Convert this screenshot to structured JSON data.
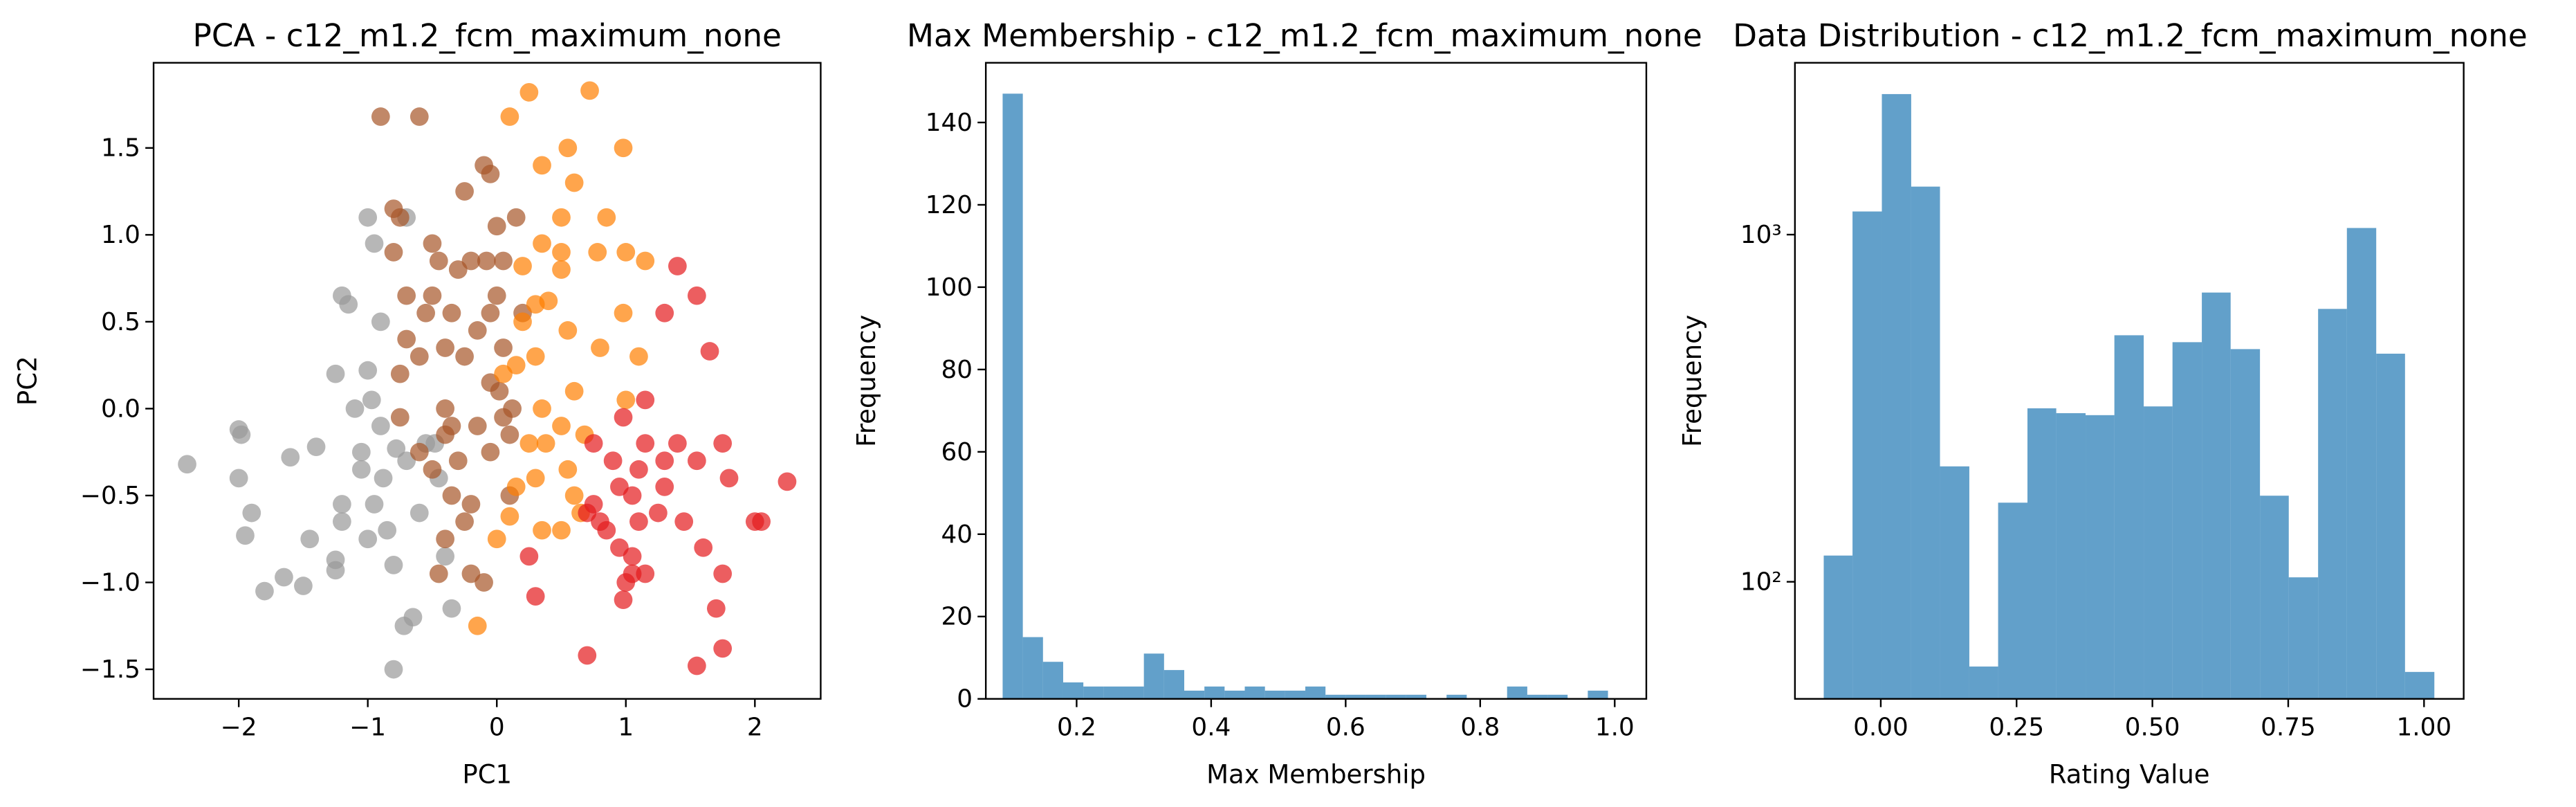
{
  "chart_data": [
    {
      "type": "scatter",
      "title": "PCA - c12_m1.2_fcm_maximum_none",
      "x_label": "PC1",
      "y_label": "PC2",
      "xlim": [
        -2.66,
        2.51
      ],
      "ylim": [
        -1.67,
        1.99
      ],
      "xticks": [
        {
          "value": -2,
          "label": "−2"
        },
        {
          "value": -1,
          "label": "−1"
        },
        0,
        1,
        2
      ],
      "yticks": [
        {
          "value": -1.5,
          "label": "−1.5"
        },
        {
          "value": -1,
          "label": "−1.0"
        },
        {
          "value": -0.5,
          "label": "−0.5"
        },
        {
          "value": 0,
          "label": "0.0"
        },
        0.5,
        {
          "value": 1,
          "label": "1.0"
        },
        1.5
      ],
      "alpha": 0.7,
      "series": [
        {
          "color": "#999999",
          "x": [
            -2.4,
            -2.0,
            -1.98,
            -2.0,
            -1.9,
            -1.95,
            -1.8,
            -1.65,
            -1.6,
            -1.5,
            -1.45,
            -1.4,
            -1.25,
            -1.2,
            -1.25,
            -1.2,
            -1.25,
            -1.2,
            -1.15,
            -1.1,
            -1.05,
            -1.05,
            -1.0,
            -0.97,
            -1.0,
            -0.95,
            -0.95,
            -0.9,
            -0.88,
            -0.85,
            -0.8,
            -0.78,
            -0.72,
            -0.8,
            -0.65,
            -0.7,
            -0.7,
            -0.6,
            -0.55,
            -0.48,
            -0.45,
            -0.35,
            -0.4,
            -1.0,
            -0.9
          ],
          "values": [
            -0.32,
            -0.12,
            -0.15,
            -0.4,
            -0.6,
            -0.73,
            -1.05,
            -0.97,
            -0.28,
            -1.02,
            -0.75,
            -0.22,
            -0.93,
            -0.65,
            -0.87,
            -0.55,
            0.2,
            0.65,
            0.6,
            0.0,
            -0.35,
            -0.25,
            -0.75,
            0.05,
            1.1,
            0.95,
            -0.55,
            -0.1,
            -0.4,
            -0.7,
            -0.9,
            -0.23,
            -1.25,
            -1.5,
            -1.2,
            -0.3,
            1.1,
            -0.6,
            -0.2,
            -0.2,
            -0.4,
            -1.15,
            -0.85,
            0.22,
            0.5
          ]
        },
        {
          "color": "#a65628",
          "x": [
            -0.9,
            -0.6,
            -0.8,
            -0.75,
            -0.8,
            -0.7,
            -0.75,
            -0.75,
            -0.7,
            -0.6,
            -0.55,
            -0.5,
            -0.5,
            -0.45,
            -0.4,
            -0.4,
            -0.35,
            -0.3,
            -0.35,
            -0.3,
            -0.4,
            -0.45,
            -0.4,
            -0.25,
            -0.25,
            -0.2,
            -0.2,
            -0.15,
            -0.15,
            -0.1,
            -0.05,
            -0.08,
            -0.05,
            0.0,
            0.0,
            0.02,
            0.05,
            0.05,
            0.1,
            0.12,
            -0.1,
            -0.2,
            -0.25,
            -0.35,
            0.1,
            -0.05,
            0.15,
            0.2,
            0.05,
            -0.05,
            -0.5,
            -0.6
          ],
          "values": [
            1.68,
            1.68,
            1.15,
            1.1,
            0.9,
            0.65,
            0.2,
            -0.05,
            0.4,
            0.3,
            0.55,
            0.95,
            0.65,
            0.85,
            0.35,
            0.0,
            0.55,
            0.8,
            -0.5,
            -0.3,
            -0.15,
            -0.95,
            -0.75,
            1.25,
            0.3,
            0.85,
            -0.55,
            -0.1,
            0.45,
            1.4,
            1.35,
            0.85,
            0.55,
            0.65,
            1.05,
            0.1,
            0.35,
            0.85,
            -0.15,
            0.0,
            -1.0,
            -0.95,
            -0.65,
            -0.1,
            -0.5,
            -0.25,
            1.1,
            0.55,
            -0.05,
            0.15,
            -0.35,
            -0.25
          ]
        },
        {
          "color": "#ff7f00",
          "x": [
            0.25,
            0.72,
            0.1,
            0.35,
            0.55,
            0.98,
            0.6,
            0.85,
            0.5,
            0.2,
            0.35,
            0.5,
            0.5,
            0.78,
            1.0,
            1.15,
            0.3,
            0.4,
            0.55,
            0.2,
            0.3,
            0.15,
            0.05,
            0.98,
            0.6,
            0.8,
            1.0,
            1.1,
            0.35,
            0.5,
            0.25,
            0.3,
            0.15,
            0.35,
            0.5,
            0.65,
            0.55,
            0.6,
            0.0,
            -0.15,
            0.1,
            0.38,
            0.68
          ],
          "values": [
            1.82,
            1.83,
            1.68,
            1.4,
            1.5,
            1.5,
            1.3,
            1.1,
            1.1,
            0.82,
            0.95,
            0.9,
            0.8,
            0.9,
            0.9,
            0.85,
            0.6,
            0.62,
            0.45,
            0.5,
            0.3,
            0.25,
            0.2,
            0.55,
            0.1,
            0.35,
            0.05,
            0.3,
            0.0,
            -0.1,
            -0.2,
            -0.4,
            -0.45,
            -0.7,
            -0.7,
            -0.6,
            -0.35,
            -0.5,
            -0.75,
            -1.25,
            -0.62,
            -0.2,
            -0.15
          ]
        },
        {
          "color": "#e41a1c",
          "x": [
            1.4,
            1.55,
            1.65,
            1.3,
            0.98,
            1.15,
            1.4,
            1.55,
            1.75,
            1.8,
            0.75,
            0.9,
            0.95,
            1.05,
            1.1,
            1.25,
            1.45,
            1.6,
            0.75,
            0.85,
            0.95,
            1.05,
            0.7,
            0.8,
            1.0,
            1.05,
            0.98,
            1.15,
            0.3,
            0.7,
            1.3,
            1.55,
            1.75,
            1.7,
            1.75,
            2.0,
            2.05,
            2.25,
            0.25,
            1.15,
            1.3,
            1.1
          ],
          "values": [
            0.82,
            0.65,
            0.33,
            0.55,
            -0.05,
            0.05,
            -0.2,
            -0.3,
            -0.2,
            -0.4,
            -0.2,
            -0.3,
            -0.45,
            -0.5,
            -0.65,
            -0.6,
            -0.65,
            -0.8,
            -0.55,
            -0.7,
            -0.8,
            -0.85,
            -0.6,
            -0.65,
            -1.0,
            -0.95,
            -1.1,
            -0.95,
            -1.08,
            -1.42,
            -0.45,
            -1.48,
            -0.95,
            -1.15,
            -1.38,
            -0.65,
            -0.65,
            -0.42,
            -0.85,
            -0.2,
            -0.3,
            -0.35
          ]
        }
      ]
    },
    {
      "type": "histogram",
      "title": "Max Membership - c12_m1.2_fcm_maximum_none",
      "x_label": "Max Membership",
      "y_label": "Frequency",
      "color": "#1f77b4",
      "alpha": 0.7,
      "xlim": [
        0.065,
        1.047
      ],
      "ylim": [
        0,
        154.5
      ],
      "xticks": [
        0.2,
        0.4,
        0.6,
        0.8,
        {
          "value": 1,
          "label": "1.0"
        }
      ],
      "yticks": [
        0,
        20,
        40,
        60,
        80,
        100,
        120,
        140
      ],
      "bins": [
        0.09,
        0.12,
        0.15,
        0.18,
        0.21,
        0.24,
        0.27,
        0.3,
        0.33,
        0.36,
        0.39,
        0.42,
        0.45,
        0.48,
        0.51,
        0.54,
        0.57,
        0.6,
        0.63,
        0.66,
        0.69,
        0.72,
        0.75,
        0.78,
        0.81,
        0.84,
        0.87,
        0.9,
        0.93,
        0.96,
        0.99
      ],
      "values": [
        147,
        15,
        9,
        4,
        3,
        3,
        3,
        11,
        7,
        2,
        3,
        2,
        3,
        2,
        2,
        3,
        1,
        1,
        1,
        1,
        1,
        0,
        1,
        0,
        0,
        3,
        1,
        1,
        0,
        2
      ]
    },
    {
      "type": "histogram",
      "title": "Data Distribution - c12_m1.2_fcm_maximum_none",
      "x_label": "Rating Value",
      "y_label": "Frequency",
      "color": "#1f77b4",
      "alpha": 0.7,
      "yscale": "log",
      "xlim": [
        -0.158,
        1.073
      ],
      "ylim": [
        46,
        3126
      ],
      "xticks": [
        {
          "value": 0,
          "label": "0.00"
        },
        0.25,
        {
          "value": 0.5,
          "label": "0.50"
        },
        0.75,
        {
          "value": 1,
          "label": "1.00"
        }
      ],
      "yticks": [
        {
          "value": 100,
          "label": "10²"
        },
        {
          "value": 1000,
          "label": "10³"
        }
      ],
      "bins": [
        -0.105,
        -0.052,
        0.002,
        0.056,
        0.109,
        0.163,
        0.216,
        0.27,
        0.323,
        0.377,
        0.43,
        0.484,
        0.537,
        0.591,
        0.644,
        0.698,
        0.751,
        0.805,
        0.858,
        0.912,
        0.965,
        1.019
      ],
      "values": [
        119,
        1166,
        2540,
        1375,
        215,
        57,
        169,
        316,
        306,
        302,
        513,
        320,
        490,
        681,
        468,
        177,
        103,
        611,
        1045,
        454,
        55
      ]
    }
  ]
}
